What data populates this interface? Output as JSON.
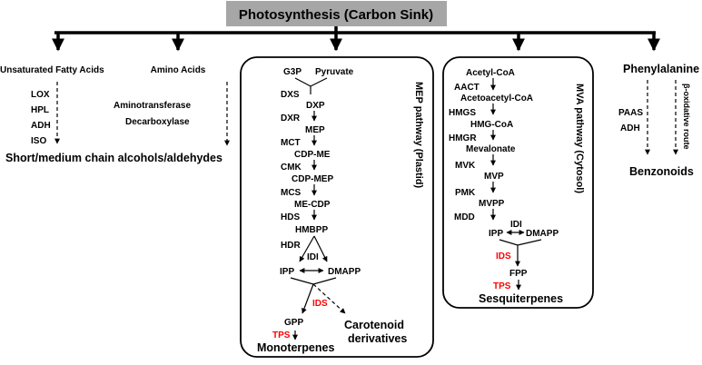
{
  "title": "Photosynthesis (Carbon Sink)",
  "colors": {
    "title_box": "#a6a6a6",
    "enzyme_red": "#ff0000",
    "ink": "#000000"
  },
  "branch1": {
    "top_label": "Unsaturated Fatty Acids",
    "enzymes": [
      "LOX",
      "HPL",
      "ADH",
      "ISO"
    ],
    "product": "Short/medium chain alcohols/aldehydes"
  },
  "branch2": {
    "top_label": "Amino Acids",
    "enzymes": [
      "Aminotransferase",
      "Decarboxylase"
    ]
  },
  "mep": {
    "pathway_label": "MEP pathway (Plastid)",
    "g3p": "G3P",
    "pyruvate": "Pyruvate",
    "enzymes": [
      "DXS",
      "DXR",
      "MCT",
      "CMK",
      "MCS",
      "HDS",
      "HDR"
    ],
    "metabolites": [
      "DXP",
      "MEP",
      "CDP-ME",
      "CDP-MEP",
      "ME-CDP",
      "HMBPP"
    ],
    "idi": "IDI",
    "ipp": "IPP",
    "dmapp": "DMAPP",
    "ids": "IDS",
    "gpp": "GPP",
    "tps": "TPS",
    "monoterpenes": "Monoterpenes",
    "carotenoid_1": "Carotenoid",
    "carotenoid_2": "derivatives"
  },
  "mva": {
    "pathway_label": "MVA pathway (Cytosol)",
    "acetyl_coa": "Acetyl-CoA",
    "enzymes": [
      "AACT",
      "HMGS",
      "HMGR",
      "MVK",
      "PMK",
      "MDD"
    ],
    "metabolites": [
      "Acetoacetyl-CoA",
      "HMG-CoA",
      "Mevalonate",
      "MVP",
      "MVPP"
    ],
    "idi": "IDI",
    "ipp": "IPP",
    "dmapp": "DMAPP",
    "ids": "IDS",
    "fpp": "FPP",
    "tps": "TPS",
    "sesquiterpenes": "Sesquiterpenes"
  },
  "phenyl": {
    "top_label": "Phenylalanine",
    "enzymes": [
      "PAAS",
      "ADH"
    ],
    "side_route": "β-oxidative route",
    "product": "Benzonoids"
  }
}
